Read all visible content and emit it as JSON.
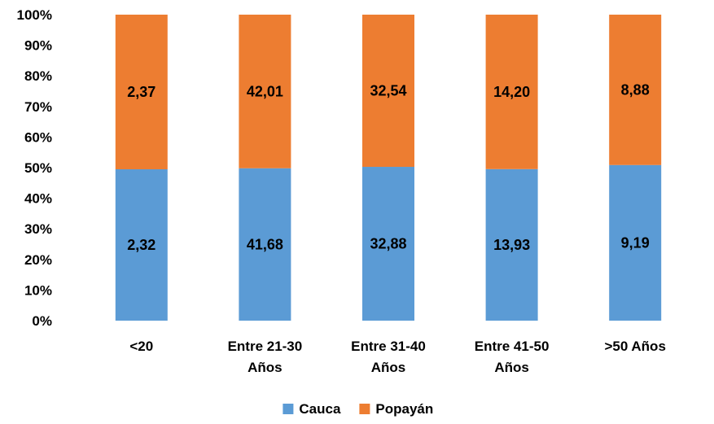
{
  "chart_data": {
    "type": "bar",
    "stacked": "percent",
    "categories": [
      [
        "<20"
      ],
      [
        "Entre 21-30",
        "Años"
      ],
      [
        "Entre 31-40",
        "Años"
      ],
      [
        "Entre 41-50",
        "Años"
      ],
      [
        ">50 Años"
      ]
    ],
    "series": [
      {
        "name": "Cauca",
        "color": "#5B9BD5",
        "values": [
          2.32,
          41.68,
          32.88,
          13.93,
          9.19
        ],
        "labels": [
          "2,32",
          "41,68",
          "32,88",
          "13,93",
          "9,19"
        ]
      },
      {
        "name": "Popayán",
        "color": "#ED7D31",
        "values": [
          2.37,
          42.01,
          32.54,
          14.2,
          8.88
        ],
        "labels": [
          "2,37",
          "42,01",
          "32,54",
          "14,20",
          "8,88"
        ]
      }
    ],
    "y_ticks": [
      "0%",
      "10%",
      "20%",
      "30%",
      "40%",
      "50%",
      "60%",
      "70%",
      "80%",
      "90%",
      "100%"
    ],
    "ylim": [
      0,
      100
    ],
    "grid": false,
    "legend_position": "bottom",
    "title": "",
    "xlabel": "",
    "ylabel": ""
  }
}
